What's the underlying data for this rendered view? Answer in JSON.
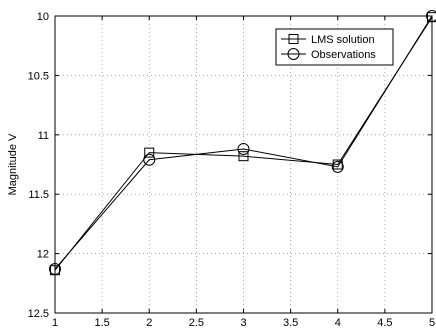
{
  "chart_data": {
    "type": "line",
    "title": "",
    "xlabel": "",
    "ylabel": "Magnitude V",
    "xlim": [
      1,
      5
    ],
    "ylim": [
      10,
      12.5
    ],
    "y_reversed": true,
    "grid": true,
    "legend_position": "top-right",
    "x_ticks": [
      "1",
      "1.5",
      "2",
      "2.5",
      "3",
      "3.5",
      "4",
      "4.5",
      "5"
    ],
    "y_ticks": [
      "10",
      "10.5",
      "11",
      "11.5",
      "12",
      "12.5"
    ],
    "series": [
      {
        "name": "LMS solution",
        "marker": "square",
        "x": [
          1,
          2,
          3,
          4,
          5
        ],
        "y": [
          12.14,
          11.15,
          11.18,
          11.25,
          10.01
        ]
      },
      {
        "name": "Observations",
        "marker": "circle",
        "x": [
          1,
          2,
          3,
          4,
          5
        ],
        "y": [
          12.13,
          11.21,
          11.12,
          11.27,
          10.0
        ]
      }
    ]
  }
}
